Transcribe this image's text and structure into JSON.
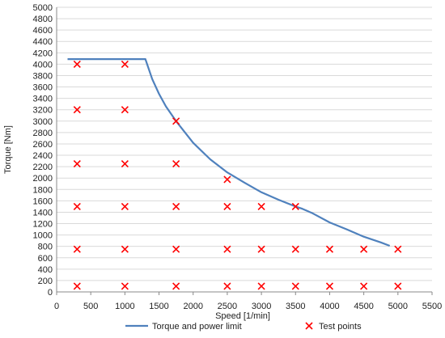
{
  "chart_data": {
    "type": "line",
    "xlabel": "Speed [1/min]",
    "ylabel": "Torque [Nm]",
    "xlim": [
      0,
      5500
    ],
    "ylim": [
      0,
      5000
    ],
    "xticks": [
      0,
      500,
      1000,
      1500,
      2000,
      2500,
      3000,
      3500,
      4000,
      4500,
      5000,
      5500
    ],
    "yticks": [
      0,
      200,
      400,
      600,
      800,
      1000,
      1200,
      1400,
      1600,
      1800,
      2000,
      2200,
      2400,
      2600,
      2800,
      3000,
      3200,
      3400,
      3600,
      3800,
      4000,
      4200,
      4400,
      4600,
      4800,
      5000
    ],
    "grid": true,
    "legend_position": "bottom",
    "series": [
      {
        "name": "Torque and power limit",
        "kind": "line",
        "color": "#4f81bd",
        "points": [
          [
            160,
            4090
          ],
          [
            1300,
            4090
          ],
          [
            1400,
            3740
          ],
          [
            1500,
            3480
          ],
          [
            1600,
            3260
          ],
          [
            1750,
            3000
          ],
          [
            2000,
            2620
          ],
          [
            2250,
            2330
          ],
          [
            2500,
            2100
          ],
          [
            2750,
            1920
          ],
          [
            3000,
            1750
          ],
          [
            3250,
            1620
          ],
          [
            3500,
            1500
          ],
          [
            3600,
            1460
          ],
          [
            3750,
            1380
          ],
          [
            4000,
            1220
          ],
          [
            4250,
            1100
          ],
          [
            4500,
            970
          ],
          [
            4750,
            870
          ],
          [
            4880,
            810
          ]
        ]
      },
      {
        "name": "Test points",
        "kind": "scatter",
        "color": "#ff0000",
        "points": [
          [
            300,
            4000
          ],
          [
            1000,
            4000
          ],
          [
            300,
            3200
          ],
          [
            1000,
            3200
          ],
          [
            1750,
            3000
          ],
          [
            300,
            2250
          ],
          [
            1000,
            2250
          ],
          [
            1750,
            2250
          ],
          [
            2500,
            1975
          ],
          [
            300,
            1500
          ],
          [
            1000,
            1500
          ],
          [
            1750,
            1500
          ],
          [
            2500,
            1500
          ],
          [
            3000,
            1500
          ],
          [
            3500,
            1500
          ],
          [
            300,
            750
          ],
          [
            1000,
            750
          ],
          [
            1750,
            750
          ],
          [
            2500,
            750
          ],
          [
            3000,
            750
          ],
          [
            3500,
            750
          ],
          [
            4000,
            750
          ],
          [
            4500,
            750
          ],
          [
            5000,
            750
          ],
          [
            300,
            100
          ],
          [
            1000,
            100
          ],
          [
            1750,
            100
          ],
          [
            2500,
            100
          ],
          [
            3000,
            100
          ],
          [
            3500,
            100
          ],
          [
            4000,
            100
          ],
          [
            4500,
            100
          ],
          [
            5000,
            100
          ]
        ]
      }
    ]
  }
}
